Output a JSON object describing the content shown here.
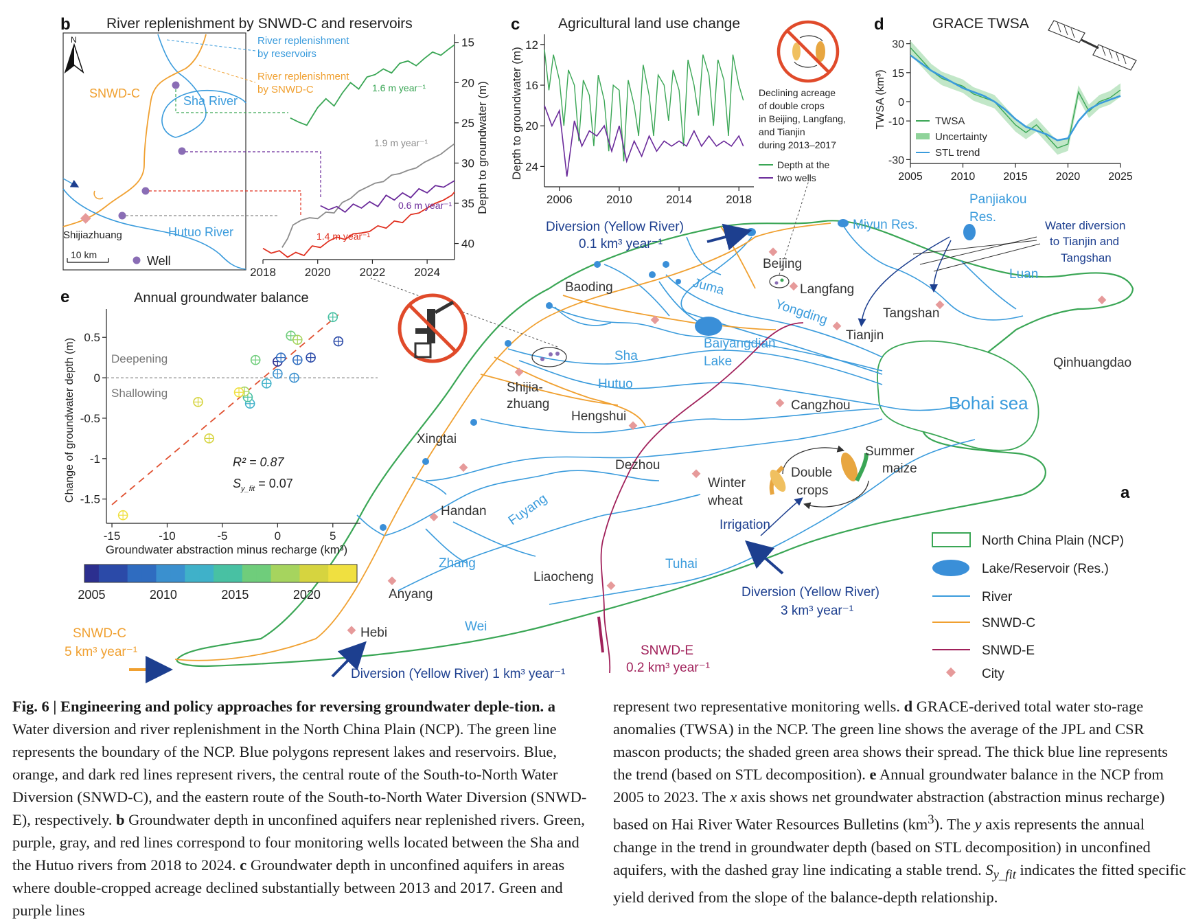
{
  "colors": {
    "ncp": "#3aa655",
    "river": "#3a9bdc",
    "snwdc": "#f0a030",
    "snwde": "#a0205a",
    "city": "#e69a9a",
    "navy": "#1d3f8f",
    "red": "#e03020",
    "gray": "#8c8c8c",
    "purple": "#6a2a9a",
    "well": "#8a6db5",
    "inkblue": "#3a9bdc"
  },
  "panel_a": {
    "label": "a",
    "sea": "Bohai sea",
    "cities": [
      "Beijing",
      "Langfang",
      "Tianjin",
      "Tangshan",
      "Qinhuangdao",
      "Baoding",
      "Shijia-",
      "zhuang",
      "Cangzhou",
      "Hengshui",
      "Xingtai",
      "Dezhou",
      "Handan",
      "Liaocheng",
      "Anyang",
      "Hebi"
    ],
    "rivers": [
      "Juma",
      "Yongding",
      "Sha",
      "Hutuo",
      "Fuyang",
      "Zhang",
      "Wei",
      "Tuhai",
      "Luan"
    ],
    "lakes": [
      "Miyun Res.",
      "Panjiakou",
      "Res.",
      "Baiyangdian",
      "Lake"
    ],
    "diversions": {
      "yellow_north": [
        "Diversion (Yellow River)",
        "0.1 km³ year⁻¹"
      ],
      "yellow_south": "Diversion (Yellow River) 1 km³ year⁻¹",
      "yellow_east": [
        "Diversion (Yellow River)",
        "3 km³ year⁻¹"
      ],
      "tianjin_tangshan": [
        "Water diversion",
        "to Tianjin and",
        "Tangshan"
      ],
      "snwdc": [
        "SNWD-C",
        "5 km³ year⁻¹"
      ],
      "snwde": [
        "SNWD-E",
        "0.2 km³ year⁻¹"
      ]
    },
    "crops": {
      "double": [
        "Double",
        "crops"
      ],
      "summer": [
        "Summer",
        "maize"
      ],
      "winter": [
        "Winter",
        "wheat"
      ],
      "irrigation": "Irrigation"
    },
    "legend": [
      "North China Plain (NCP)",
      "Lake/Reservoir (Res.)",
      "River",
      "SNWD-C",
      "SNWD-E",
      "City"
    ]
  },
  "panel_b": {
    "label": "b",
    "title": "River replenishment by SNWD-C and reservoirs",
    "map": {
      "north": "N",
      "snwdc": "SNWD-C",
      "sha": "Sha River",
      "hutuo": "Hutuo River",
      "city": "Shijiazhuang",
      "scale": "10 km",
      "well": "Well",
      "repl_res": [
        "River replenishment",
        "by reservoirs"
      ],
      "repl_snwd": [
        "River replenishment",
        "by SNWD-C"
      ]
    },
    "ylabel": "Depth to groundwater (m)"
  },
  "panel_c": {
    "label": "c",
    "title": "Agricultural land use change",
    "ylabel": "Depth to groundwater (m)",
    "note": [
      "Declining acreage",
      "of double crops",
      "in Beijing, Langfang,",
      "and Tianjin",
      "during 2013–2017"
    ],
    "legend": [
      "Depth at the",
      "two wells"
    ]
  },
  "panel_d": {
    "label": "d",
    "title": "GRACE TWSA",
    "ylabel": "TWSA (km³)",
    "legend": [
      "TWSA",
      "Uncertainty",
      "STL trend"
    ]
  },
  "panel_e": {
    "label": "e",
    "title": "Annual groundwater balance",
    "ylabel": "Change of groundwater depth (m)",
    "xlabel": "Groundwater abstraction minus recharge (km³)",
    "deepening": "Deepening",
    "shallowing": "Shallowing",
    "r2": "R² = 0.87",
    "sy_main": "S",
    "sy_sub": "y_fit",
    "sy_val": " = 0.07",
    "colorbar_ticks": [
      "2005",
      "2010",
      "2015",
      "2020"
    ]
  },
  "chart_data": [
    {
      "type": "line",
      "panel": "b",
      "title": "",
      "xlabel": "",
      "ylabel": "Depth to groundwater (m)",
      "xlim": [
        2018,
        2025
      ],
      "ylim": [
        42,
        14
      ],
      "y_inverted": true,
      "xticks": [
        2018,
        2020,
        2022,
        2024
      ],
      "yticks": [
        15,
        20,
        25,
        30,
        35,
        40
      ],
      "series": [
        {
          "name": "1.6 m year⁻¹",
          "x": [
            2019.0,
            2019.3,
            2019.6,
            2019.8,
            2020.0,
            2020.3,
            2020.6,
            2020.9,
            2021.2,
            2021.5,
            2021.8,
            2022.1,
            2022.4,
            2022.7,
            2023.0,
            2023.3,
            2023.6,
            2023.9,
            2024.2,
            2024.5,
            2024.8,
            2025.0
          ],
          "y": [
            24.4,
            24.9,
            25.3,
            24.2,
            23.1,
            22.0,
            22.9,
            21.3,
            20.0,
            20.8,
            19.3,
            19.0,
            18.3,
            18.8,
            17.6,
            17.3,
            17.9,
            17.0,
            16.2,
            16.6,
            15.8,
            15.3
          ]
        },
        {
          "name": "1.9 m year⁻¹",
          "x": [
            2018.7,
            2018.9,
            2019.1,
            2019.4,
            2019.7,
            2020.0,
            2020.3,
            2020.6,
            2020.9,
            2021.2,
            2021.5,
            2021.8,
            2022.1,
            2022.4,
            2022.7,
            2023.0,
            2023.3,
            2023.6,
            2023.9,
            2024.2,
            2024.5,
            2024.8,
            2025.0
          ],
          "y": [
            40.5,
            39.4,
            37.7,
            37.1,
            36.8,
            36.9,
            36.1,
            36.2,
            34.9,
            34.4,
            33.5,
            33.0,
            32.5,
            32.3,
            31.5,
            31.3,
            30.9,
            30.6,
            29.9,
            29.4,
            28.9,
            28.1,
            27.6
          ]
        },
        {
          "name": "0.6 m year⁻¹",
          "x": [
            2020.1,
            2020.4,
            2020.7,
            2021.0,
            2021.3,
            2021.6,
            2021.9,
            2022.2,
            2022.5,
            2022.8,
            2023.1,
            2023.4,
            2023.7,
            2024.0,
            2024.3,
            2024.6,
            2024.9,
            2025.0
          ],
          "y": [
            35.3,
            35.8,
            35.4,
            36.1,
            35.1,
            35.6,
            34.8,
            35.4,
            34.0,
            34.6,
            33.7,
            34.3,
            33.2,
            33.7,
            32.8,
            33.0,
            32.4,
            32.2
          ]
        },
        {
          "name": "1.4 m year⁻¹",
          "x": [
            2018.0,
            2018.3,
            2018.6,
            2018.9,
            2019.2,
            2019.5,
            2019.8,
            2020.1,
            2020.4,
            2020.7,
            2021.0,
            2021.3,
            2021.6,
            2021.9,
            2022.2,
            2022.5,
            2022.8,
            2023.1,
            2023.4,
            2023.7,
            2024.0,
            2024.3,
            2024.6,
            2024.9,
            2025.0
          ],
          "y": [
            40.6,
            41.2,
            40.9,
            41.7,
            41.1,
            41.5,
            40.3,
            40.5,
            39.7,
            39.2,
            39.5,
            38.8,
            38.7,
            38.5,
            37.8,
            38.1,
            37.2,
            37.4,
            36.4,
            36.2,
            35.6,
            35.0,
            34.6,
            34.0,
            33.6
          ]
        }
      ]
    },
    {
      "type": "line",
      "panel": "c",
      "title": "Agricultural land use change",
      "xlabel": "",
      "ylabel": "Depth to groundwater (m)",
      "xlim": [
        2005,
        2019
      ],
      "ylim": [
        26,
        11
      ],
      "y_inverted": true,
      "xticks": [
        2006,
        2010,
        2014,
        2018
      ],
      "yticks": [
        12,
        16,
        20,
        24
      ],
      "series": [
        {
          "name": "Depth at the two wells (green)",
          "x": [
            2005.0,
            2005.3,
            2005.6,
            2006.0,
            2006.3,
            2006.6,
            2007.0,
            2007.3,
            2007.6,
            2008.0,
            2008.3,
            2008.6,
            2009.0,
            2009.3,
            2009.6,
            2010.0,
            2010.3,
            2010.6,
            2011.0,
            2011.3,
            2011.6,
            2012.0,
            2012.3,
            2012.6,
            2013.0,
            2013.3,
            2013.6,
            2014.0,
            2014.3,
            2014.6,
            2015.0,
            2015.3,
            2015.6,
            2016.0,
            2016.3,
            2016.6,
            2017.0,
            2017.3,
            2017.6,
            2018.0,
            2018.3
          ],
          "y": [
            12.5,
            16.5,
            13.0,
            15.5,
            20.0,
            14.5,
            16.0,
            21.5,
            15.5,
            17.0,
            22.0,
            15.0,
            17.5,
            22.5,
            16.0,
            16.5,
            23.5,
            15.5,
            18.0,
            21.0,
            14.0,
            17.0,
            21.0,
            15.0,
            16.0,
            19.5,
            14.5,
            16.5,
            22.0,
            13.5,
            16.0,
            19.0,
            13.0,
            15.0,
            20.0,
            13.5,
            15.5,
            21.0,
            13.0,
            16.0,
            17.5
          ]
        },
        {
          "name": "Depth at the two wells (purple)",
          "x": [
            2005.0,
            2005.5,
            2006.0,
            2006.5,
            2007.0,
            2007.5,
            2008.0,
            2008.5,
            2009.0,
            2009.5,
            2010.0,
            2010.5,
            2011.0,
            2011.5,
            2012.0,
            2012.5,
            2013.0,
            2013.5,
            2014.0,
            2014.5,
            2015.0,
            2015.5,
            2016.0,
            2016.5,
            2017.0,
            2017.5,
            2018.0,
            2018.3
          ],
          "y": [
            18.0,
            20.0,
            18.5,
            25.0,
            19.5,
            22.0,
            20.5,
            21.0,
            20.0,
            22.5,
            20.0,
            23.5,
            21.5,
            23.0,
            21.0,
            22.5,
            21.5,
            22.0,
            21.5,
            22.0,
            20.5,
            22.0,
            21.0,
            22.0,
            21.5,
            22.0,
            21.0,
            22.0
          ]
        }
      ]
    },
    {
      "type": "line",
      "panel": "d",
      "title": "GRACE TWSA",
      "xlabel": "",
      "ylabel": "TWSA (km³)",
      "xlim": [
        2005,
        2025
      ],
      "ylim": [
        -32,
        32
      ],
      "xticks": [
        2005,
        2010,
        2015,
        2020,
        2025
      ],
      "yticks": [
        -30,
        -10,
        0,
        15,
        30
      ],
      "series": [
        {
          "name": "TWSA",
          "x": [
            2005,
            2006,
            2007,
            2008,
            2009,
            2010,
            2011,
            2012,
            2013,
            2014,
            2015,
            2016,
            2017,
            2018,
            2019,
            2020,
            2021,
            2022,
            2023,
            2024,
            2025
          ],
          "y": [
            28,
            22,
            16,
            12,
            10,
            8,
            4,
            2,
            0,
            -6,
            -12,
            -16,
            -12,
            -18,
            -24,
            -22,
            5,
            -5,
            0,
            2,
            6
          ]
        },
        {
          "name": "STL trend",
          "x": [
            2005,
            2006,
            2007,
            2008,
            2009,
            2010,
            2011,
            2012,
            2013,
            2014,
            2015,
            2016,
            2017,
            2018,
            2019,
            2020,
            2021,
            2022,
            2023,
            2024,
            2025
          ],
          "y": [
            24,
            20,
            16,
            13,
            10,
            7,
            5,
            3,
            0,
            -4,
            -9,
            -13,
            -15,
            -17,
            -20,
            -19,
            -10,
            -4,
            -1,
            1,
            3
          ]
        }
      ]
    },
    {
      "type": "scatter",
      "panel": "e",
      "title": "Annual groundwater balance",
      "xlabel": "Groundwater abstraction minus recharge (km³)",
      "ylabel": "Change of groundwater depth (m)",
      "xlim": [
        -15.5,
        7.5
      ],
      "ylim": [
        -1.8,
        0.85
      ],
      "xticks": [
        -15,
        -10,
        -5,
        0,
        5
      ],
      "yticks": [
        -1.5,
        -1,
        -0.5,
        0,
        0.5
      ],
      "points": [
        {
          "year": 2005,
          "x": 0.0,
          "y": 0.2
        },
        {
          "year": 2006,
          "x": 5.5,
          "y": 0.45
        },
        {
          "year": 2007,
          "x": 3.0,
          "y": 0.25
        },
        {
          "year": 2008,
          "x": 0.3,
          "y": 0.25
        },
        {
          "year": 2009,
          "x": 1.8,
          "y": 0.22
        },
        {
          "year": 2010,
          "x": 0.0,
          "y": 0.05
        },
        {
          "year": 2011,
          "x": 1.5,
          "y": 0.0
        },
        {
          "year": 2012,
          "x": -1.0,
          "y": -0.07
        },
        {
          "year": 2013,
          "x": -2.5,
          "y": -0.32
        },
        {
          "year": 2014,
          "x": -2.7,
          "y": -0.24
        },
        {
          "year": 2015,
          "x": 5.0,
          "y": 0.75
        },
        {
          "year": 2016,
          "x": 1.2,
          "y": 0.52
        },
        {
          "year": 2017,
          "x": -2.0,
          "y": 0.22
        },
        {
          "year": 2018,
          "x": -3.0,
          "y": -0.17
        },
        {
          "year": 2019,
          "x": 1.8,
          "y": 0.47
        },
        {
          "year": 2020,
          "x": -6.2,
          "y": -0.75
        },
        {
          "year": 2021,
          "x": -7.2,
          "y": -0.3
        },
        {
          "year": 2022,
          "x": -3.5,
          "y": -0.18
        },
        {
          "year": 2023,
          "x": -14.0,
          "y": -1.7
        }
      ],
      "fit": {
        "x": [
          -15,
          5.5
        ],
        "y": [
          -1.57,
          0.78
        ]
      }
    }
  ]
}
